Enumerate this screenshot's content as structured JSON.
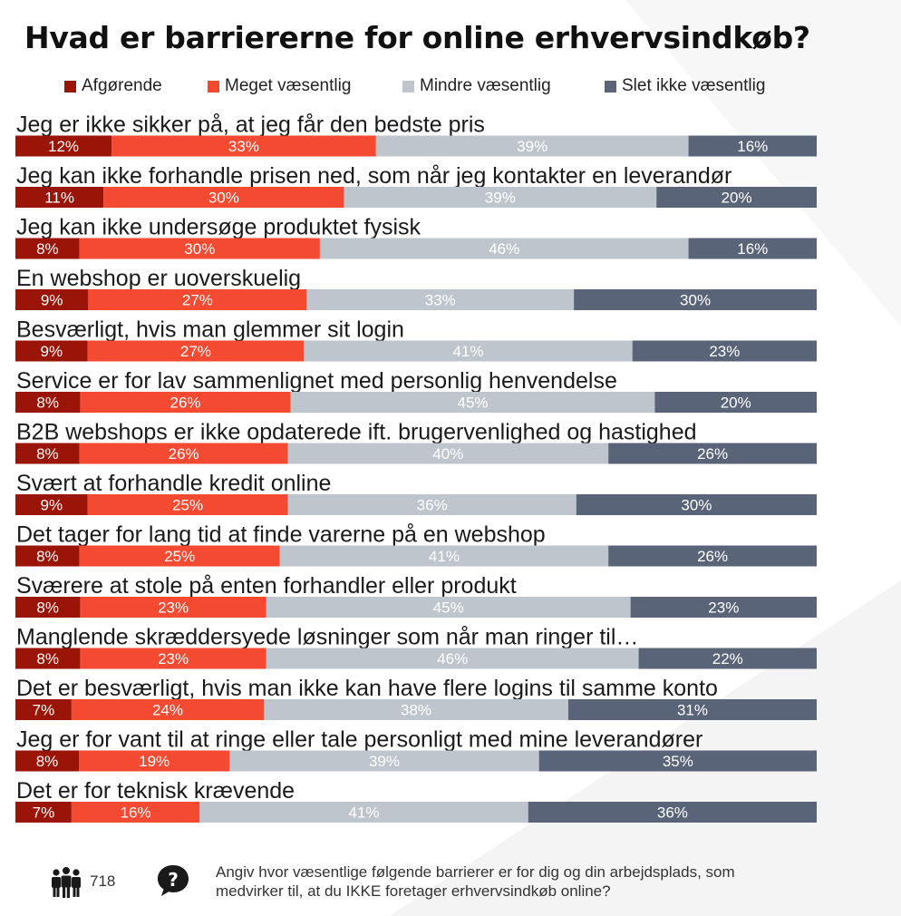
{
  "title": "Hvad er barriererne for online erhvervsindkøb?",
  "colors": {
    "afgorende": "#9b1408",
    "meget": "#f44a32",
    "mindre": "#bfc5cd",
    "slet": "#5a6478"
  },
  "legend": [
    {
      "label": "Afgørende",
      "color": "#9b1408"
    },
    {
      "label": "Meget væsentlig",
      "color": "#f44a32"
    },
    {
      "label": "Mindre væsentlig",
      "color": "#bfc5cd"
    },
    {
      "label": "Slet ikke væsentlig",
      "color": "#5a6478"
    }
  ],
  "chart_data": {
    "type": "bar",
    "orientation": "horizontal",
    "stacked": true,
    "unit": "%",
    "categories": [
      "Jeg er ikke sikker på, at jeg får den bedste pris",
      "Jeg kan ikke forhandle prisen ned, som når jeg kontakter en leverandør",
      "Jeg kan ikke undersøge produktet fysisk",
      "En webshop er uoverskuelig",
      "Besværligt, hvis man glemmer sit login",
      "Service er for lav sammenlignet med personlig henvendelse",
      "B2B webshops er ikke opdaterede ift. brugervenlighed og hastighed",
      "Svært at forhandle kredit online",
      "Det tager for lang tid at finde varerne på en webshop",
      "Sværere at stole på enten forhandler eller produkt",
      "Manglende skræddersyede løsninger som når man ringer til…",
      "Det er besværligt, hvis man ikke kan have flere logins til samme konto",
      "Jeg er for vant til at ringe eller tale personligt med mine leverandører",
      "Det er for teknisk krævende"
    ],
    "series": [
      {
        "name": "Afgørende",
        "values": [
          12,
          11,
          8,
          9,
          9,
          8,
          8,
          9,
          8,
          8,
          8,
          7,
          8,
          7
        ]
      },
      {
        "name": "Meget væsentlig",
        "values": [
          33,
          30,
          30,
          27,
          27,
          26,
          26,
          25,
          25,
          23,
          23,
          24,
          19,
          16
        ]
      },
      {
        "name": "Mindre væsentlig",
        "values": [
          39,
          39,
          46,
          33,
          41,
          45,
          40,
          36,
          41,
          45,
          46,
          38,
          39,
          41
        ]
      },
      {
        "name": "Slet ikke væsentlig",
        "values": [
          16,
          20,
          16,
          30,
          23,
          20,
          26,
          30,
          26,
          23,
          22,
          31,
          35,
          36
        ]
      }
    ]
  },
  "footer": {
    "respondents": "718",
    "people_icon": "people-icon",
    "question_icon": "question-bubble-icon",
    "note": "Angiv hvor væsentlige følgende barrierer er for dig og din arbejdsplads, som medvirker til, at du IKKE foretager erhvervsindkøb online?"
  }
}
